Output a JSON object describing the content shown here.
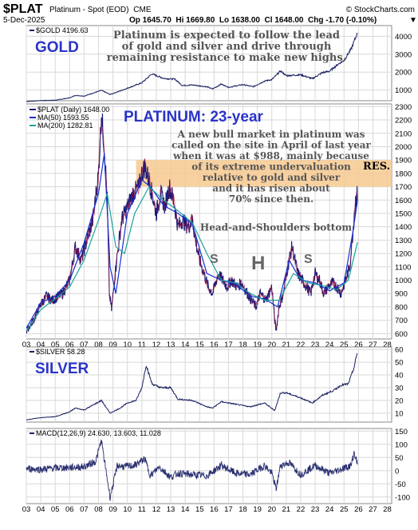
{
  "header": {
    "symbol": "$PLAT",
    "name": "Platinum - Spot (EOD)",
    "exchange": "CME",
    "brand": "© StockCharts.com",
    "date": "5-Dec-2025",
    "ohlc": "Op 1645.70  Hi 1669.80  Lo 1638.00  Cl 1648.00  Chg -1.70 (-0.10%)",
    "down_marker": "▼"
  },
  "colors": {
    "price": "#1a1a7a",
    "ma50": "#1530d0",
    "ma200": "#1aa39a",
    "macd": "#2a2f70",
    "title_blue": "#2a34c8",
    "band": "#f7c98f"
  },
  "x_axis": {
    "ticks": [
      "03",
      "04",
      "05",
      "06",
      "07",
      "08",
      "09",
      "10",
      "11",
      "12",
      "13",
      "14",
      "15",
      "16",
      "17",
      "18",
      "19",
      "20",
      "21",
      "22",
      "23",
      "24",
      "25",
      "26",
      "27",
      "28"
    ]
  },
  "chart_data": [
    {
      "type": "line",
      "panel": "gold",
      "legend": "$GOLD 4196.63",
      "title": "GOLD",
      "annotation": [
        "Platinum is expected to follow the lead",
        "of gold and silver and drive through",
        "remaining resistance to make new highs."
      ],
      "y_ticks": [
        1000,
        2000,
        3000,
        4000
      ],
      "ylim": [
        400,
        4600
      ],
      "series": [
        {
          "x": [
            2003.0,
            2004.0,
            2005.0,
            2006.0,
            2006.4,
            2007.0,
            2008.2,
            2008.8,
            2009.5,
            2010.0,
            2011.0,
            2011.7,
            2012.5,
            2013.3,
            2013.8,
            2014.5,
            2015.5,
            2015.9,
            2016.5,
            2017.0,
            2018.0,
            2018.7,
            2019.5,
            2020.0,
            2020.6,
            2021.0,
            2022.0,
            2022.8,
            2023.5,
            2024.0,
            2024.6,
            2025.0,
            2025.5,
            2025.93
          ],
          "y": [
            350,
            410,
            430,
            560,
            700,
            660,
            980,
            750,
            950,
            1100,
            1400,
            1900,
            1650,
            1600,
            1250,
            1280,
            1180,
            1060,
            1330,
            1150,
            1300,
            1180,
            1500,
            1580,
            2060,
            1800,
            1850,
            1630,
            1970,
            2050,
            2450,
            2650,
            3300,
            4197
          ]
        }
      ]
    },
    {
      "type": "line",
      "panel": "platinum",
      "legend": [
        "$PLAT (Daily) 1648.00",
        "MA(50) 1593.55",
        "MA(200) 1282.81"
      ],
      "title": "PLATINUM: 23-year",
      "annotation": [
        "A new bull market in platinum was",
        "called on the site in April of last year",
        "when it was at $988, mainly because",
        "of its extreme undervaluation",
        "relative to gold and silver",
        "and it has risen about",
        "70% since then."
      ],
      "resistance_label": "RES.",
      "pattern_label": "Head-and-Shoulders bottom",
      "pattern_marks": [
        "S",
        "H",
        "S"
      ],
      "resistance_band": [
        1700,
        1900
      ],
      "y_ticks": [
        600,
        700,
        800,
        900,
        1000,
        1100,
        1200,
        1300,
        1400,
        1500,
        1600,
        1700,
        1800,
        1900,
        2000,
        2100,
        2200,
        2300
      ],
      "ylim": [
        560,
        2320
      ],
      "series": [
        {
          "name": "$PLAT",
          "x": [
            2003.0,
            2003.5,
            2004.0,
            2004.4,
            2004.8,
            2005.5,
            2006.0,
            2006.4,
            2006.8,
            2007.2,
            2007.6,
            2008.0,
            2008.2,
            2008.4,
            2008.6,
            2008.75,
            2008.9,
            2009.2,
            2009.6,
            2010.0,
            2010.4,
            2010.8,
            2011.0,
            2011.2,
            2011.5,
            2011.8,
            2012.0,
            2012.3,
            2012.6,
            2012.9,
            2013.2,
            2013.5,
            2013.8,
            2014.2,
            2014.5,
            2014.8,
            2015.0,
            2015.3,
            2015.6,
            2015.9,
            2016.3,
            2016.6,
            2016.9,
            2017.2,
            2017.6,
            2017.9,
            2018.2,
            2018.6,
            2018.9,
            2019.2,
            2019.6,
            2020.0,
            2020.2,
            2020.3,
            2020.5,
            2020.8,
            2021.1,
            2021.4,
            2021.8,
            2022.1,
            2022.4,
            2022.7,
            2023.0,
            2023.3,
            2023.6,
            2023.9,
            2024.2,
            2024.5,
            2024.8,
            2025.1,
            2025.4,
            2025.6,
            2025.8,
            2025.93
          ],
          "y": [
            620,
            700,
            820,
            880,
            850,
            900,
            1000,
            1250,
            1150,
            1300,
            1450,
            1800,
            2250,
            2000,
            1600,
            900,
            780,
            1100,
            1450,
            1550,
            1650,
            1700,
            1800,
            1850,
            1750,
            1600,
            1500,
            1650,
            1550,
            1700,
            1600,
            1400,
            1450,
            1400,
            1450,
            1250,
            1150,
            1050,
            950,
            900,
            1050,
            1000,
            950,
            1000,
            950,
            980,
            920,
            850,
            800,
            900,
            850,
            950,
            700,
            620,
            800,
            900,
            1100,
            1250,
            1050,
            1000,
            950,
            900,
            1050,
            1000,
            900,
            950,
            980,
            950,
            900,
            1000,
            1100,
            1350,
            1600,
            1648
          ]
        },
        {
          "name": "MA(50)",
          "x": [
            2003.0,
            2004.0,
            2005.0,
            2006.0,
            2007.0,
            2008.0,
            2008.4,
            2008.8,
            2009.2,
            2010.0,
            2011.0,
            2011.6,
            2012.5,
            2013.5,
            2014.5,
            2015.5,
            2016.5,
            2017.5,
            2018.5,
            2019.5,
            2020.4,
            2021.2,
            2022.0,
            2023.0,
            2024.0,
            2025.0,
            2025.6,
            2025.93
          ],
          "y": [
            640,
            830,
            880,
            1000,
            1280,
            1650,
            1950,
            1100,
            900,
            1500,
            1750,
            1700,
            1560,
            1500,
            1420,
            1050,
            1000,
            970,
            880,
            860,
            800,
            1150,
            1000,
            980,
            920,
            980,
            1350,
            1594
          ]
        },
        {
          "name": "MA(200)",
          "x": [
            2003.0,
            2004.0,
            2005.0,
            2006.0,
            2007.0,
            2008.0,
            2008.6,
            2009.2,
            2009.8,
            2010.5,
            2011.5,
            2012.5,
            2013.5,
            2014.5,
            2015.5,
            2016.5,
            2017.5,
            2018.5,
            2019.5,
            2020.5,
            2021.5,
            2022.5,
            2023.5,
            2024.5,
            2025.3,
            2025.93
          ],
          "y": [
            620,
            780,
            860,
            950,
            1150,
            1450,
            1650,
            1250,
            1200,
            1500,
            1700,
            1600,
            1520,
            1430,
            1200,
            1000,
            980,
            900,
            850,
            850,
            1050,
            980,
            960,
            930,
            1000,
            1283
          ]
        }
      ]
    },
    {
      "type": "line",
      "panel": "silver",
      "legend": "$SILVER 58.28",
      "title": "SILVER",
      "y_ticks": [
        10,
        20,
        30,
        40,
        50,
        60
      ],
      "ylim": [
        3,
        62
      ],
      "series": [
        {
          "x": [
            2003.0,
            2004.0,
            2005.0,
            2006.0,
            2006.4,
            2007.0,
            2008.2,
            2008.8,
            2009.5,
            2010.0,
            2010.6,
            2011.0,
            2011.3,
            2011.7,
            2012.3,
            2013.0,
            2013.5,
            2014.5,
            2015.5,
            2015.9,
            2016.5,
            2017.5,
            2018.5,
            2019.5,
            2020.2,
            2020.6,
            2021.0,
            2022.0,
            2022.8,
            2023.5,
            2024.3,
            2024.8,
            2025.3,
            2025.7,
            2025.93
          ],
          "y": [
            4.8,
            6.5,
            7.2,
            11,
            14,
            12.5,
            20,
            10,
            14,
            18,
            20,
            30,
            48,
            33,
            30,
            30,
            21,
            20,
            15,
            14,
            19,
            17,
            15,
            18,
            12,
            26,
            26,
            22,
            18,
            24,
            28,
            32,
            33,
            46,
            58.3
          ]
        }
      ]
    },
    {
      "type": "line",
      "panel": "macd",
      "legend": "MACD(12,26,9) 24.630, 13.603, 11.028",
      "y_ticks": [
        -100,
        -50,
        0,
        50,
        100,
        150
      ],
      "ylim": [
        -125,
        160
      ],
      "series": [
        {
          "x": [
            2003.0,
            2004.0,
            2005.0,
            2006.0,
            2007.0,
            2007.8,
            2008.2,
            2008.4,
            2008.6,
            2008.8,
            2009.0,
            2009.3,
            2009.8,
            2010.5,
            2011.2,
            2011.6,
            2012.2,
            2013.0,
            2013.5,
            2014.5,
            2015.5,
            2016.5,
            2017.5,
            2018.5,
            2019.5,
            2020.0,
            2020.3,
            2020.6,
            2021.2,
            2022.0,
            2023.0,
            2024.0,
            2025.0,
            2025.5,
            2025.7,
            2025.93
          ],
          "y": [
            8,
            5,
            10,
            12,
            15,
            35,
            115,
            40,
            -30,
            -100,
            -55,
            20,
            15,
            20,
            45,
            -20,
            15,
            -25,
            -10,
            -15,
            -20,
            20,
            -10,
            -15,
            20,
            -10,
            -70,
            20,
            30,
            -15,
            20,
            -10,
            10,
            20,
            70,
            25
          ]
        }
      ]
    }
  ]
}
